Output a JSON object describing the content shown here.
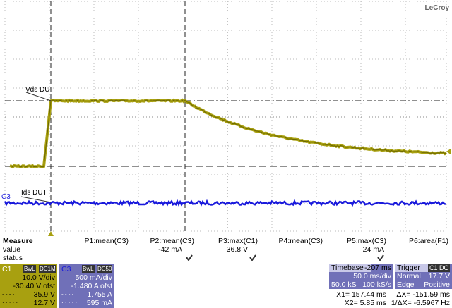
{
  "brand": "LeCroy",
  "traces": {
    "c1_label": "Vds DUT",
    "c3_label": "Ids DUT",
    "c3_marker": "C3"
  },
  "measure": {
    "title": "Measure",
    "row_labels": [
      "value",
      "status"
    ],
    "params": [
      {
        "name": "P1:mean(C3)"
      },
      {
        "name": "P2:mean(C3)",
        "value": "-42 mA"
      },
      {
        "name": "P3:max(C1)",
        "value": "36.8 V"
      },
      {
        "name": "P4:mean(C3)"
      },
      {
        "name": "P5:max(C3)",
        "value": "24 mA"
      },
      {
        "name": "P6:area(F1)"
      }
    ]
  },
  "channel1": {
    "name": "C1",
    "badges": [
      "BwL",
      "DC1M"
    ],
    "lines": [
      "10.0 V/div",
      "-30.40 V ofst",
      "35.9 V",
      "12.7 V"
    ]
  },
  "channel3": {
    "name": "C3",
    "badges": [
      "BwL",
      "DC50"
    ],
    "lines": [
      "500 mA/div",
      "-1.480 A ofst",
      "1.755 A",
      "595 mA"
    ]
  },
  "timebase": {
    "title": "Timebase",
    "delay": "-207 ms",
    "scale": "50.0 ms/div",
    "samples": "50.0 kS",
    "rate": "100 kS/s"
  },
  "trigger": {
    "title": "Trigger",
    "source": "C1 DC",
    "mode": "Normal",
    "level": "17.7 V",
    "type": "Edge",
    "slope": "Positive"
  },
  "cursors": {
    "x1": "X1= 157.44 ms",
    "dx": "ΔX= -151.59 ms",
    "x2": "X2= 5.85 ms",
    "inv_dx": "1/ΔX= -6.5967 Hz"
  }
}
